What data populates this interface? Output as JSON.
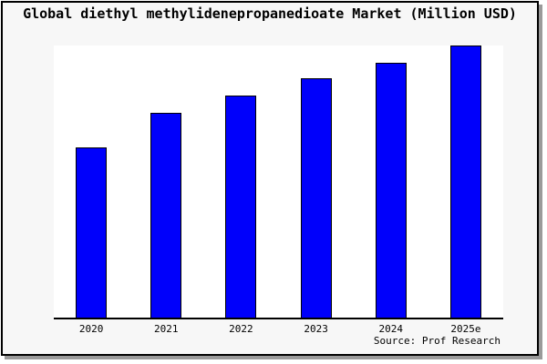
{
  "window": {
    "title": "Global diethyl methylidenepropanedioate Market (Million USD)",
    "source_note": "Source: Prof Research"
  },
  "colors": {
    "bar_fill": "#0000fb",
    "bar_border": "#000000",
    "window_bg": "#f7f7f7",
    "plot_bg": "#ffffff",
    "frame_border": "#000000",
    "shadow": "#9a9a9a",
    "text": "#000000"
  },
  "chart_data": {
    "type": "bar",
    "title": "Global diethyl methylidenepropanedioate Market (Million USD)",
    "categories": [
      "2020",
      "2021",
      "2022",
      "2023",
      "2024",
      "2025e"
    ],
    "values": [
      62.7,
      75.3,
      81.7,
      87.8,
      93.7,
      100
    ],
    "value_note": "relative units estimated from bar heights; no y-axis scale shown in image (2025e bar = 100)",
    "xlabel": "",
    "ylabel": "",
    "ylim": [
      0,
      100
    ],
    "grid": false,
    "legend": false,
    "source_note": "Source: Prof Research"
  }
}
